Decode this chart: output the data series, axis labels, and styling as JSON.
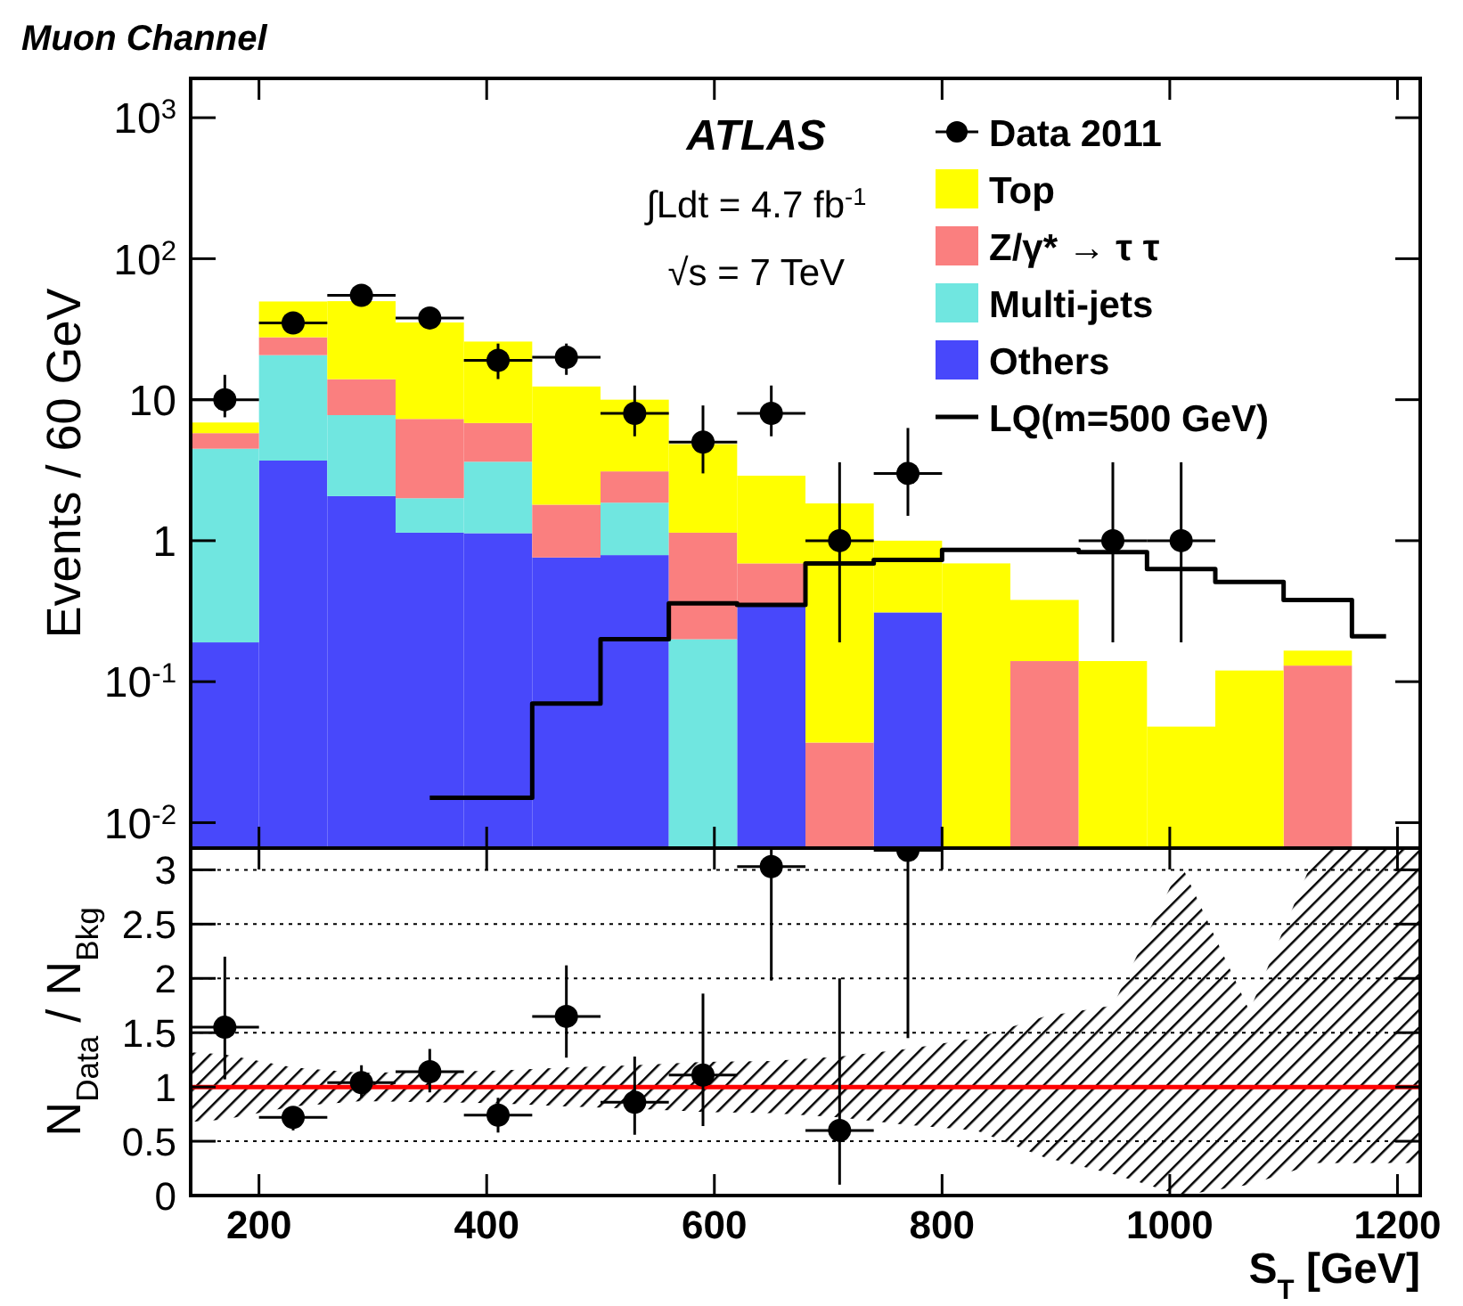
{
  "chart_data": [
    {
      "type": "bar",
      "title": "Muon Channel",
      "ylabel": "Events / 60 GeV",
      "stacked": true,
      "log": "y",
      "legend": "top right",
      "tick_labels": "y",
      "x": [
        170,
        230,
        290,
        350,
        410,
        470,
        530,
        590,
        650,
        710,
        770,
        830,
        890,
        950,
        1010,
        1070,
        1130,
        1190
      ],
      "xlim": [
        140,
        1220
      ],
      "xticks": [
        200,
        400,
        600,
        800,
        1000,
        1200
      ],
      "ylim": [
        0.0066,
        1900
      ],
      "yticks": [
        {
          "value": 0.01,
          "label": "10$^{-2}$"
        },
        {
          "value": 0.1,
          "label": "10$^{-1}$"
        },
        1,
        10,
        {
          "value": 100,
          "label": "10$^{2}$"
        },
        {
          "value": 1000,
          "label": "10$^{3}$"
        }
      ],
      "annotations": [
        "ATLAS",
        "∫Ldt = 4.7 fb$^{-1}$",
        "√s = 7 TeV"
      ],
      "series": [
        {
          "name": "Others",
          "color": "#4848fb",
          "values": [
            0.19,
            3.7,
            2.07,
            1.14,
            1.13,
            0.76,
            0.79,
            null,
            0.36,
            null,
            0.31,
            null,
            null,
            null,
            null,
            null,
            null,
            null
          ]
        },
        {
          "name": "Multi-jets",
          "color": "#70e6e0",
          "values": [
            4.3,
            17,
            5.7,
            0.86,
            2.5,
            null,
            1.07,
            0.2,
            null,
            null,
            null,
            null,
            null,
            null,
            null,
            null,
            null,
            null
          ]
        },
        {
          "name": "Z/γ* → τ τ",
          "color": "#fa7f7f",
          "values": [
            1.3,
            7,
            6.2,
            5.3,
            3.2,
            1.04,
            1.24,
            0.94,
            0.33,
            0.037,
            null,
            null,
            0.14,
            null,
            null,
            null,
            0.13,
            null
          ]
        },
        {
          "name": "Top",
          "color": "#ffff00",
          "values": [
            1.1,
            22,
            36,
            28,
            19,
            10.6,
            6.9,
            3.7,
            2.2,
            1.8,
            0.69,
            0.69,
            0.24,
            0.14,
            0.048,
            0.12,
            0.036,
            null
          ]
        },
        {
          "type": "scatter",
          "name": "Data 2011",
          "color": "#000000",
          "marker": "circle",
          "values": [
            10,
            35,
            55,
            38,
            19,
            20,
            8,
            5,
            8,
            1,
            3,
            null,
            null,
            1,
            1,
            null,
            null,
            null
          ],
          "errors": [
            [
              7.5,
              15
            ],
            [
              30,
              42
            ],
            [
              48,
              62
            ],
            [
              32,
              45
            ],
            [
              14,
              25
            ],
            [
              15,
              25
            ],
            [
              5.5,
              12.6
            ],
            [
              3,
              9.1
            ],
            [
              5.5,
              12.6
            ],
            [
              0.19,
              3.6
            ],
            [
              1.5,
              6.3
            ],
            null,
            null,
            [
              0.19,
              3.6
            ],
            [
              0.19,
              3.6
            ],
            null,
            null,
            null
          ],
          "xerrors": [
            30,
            30,
            30,
            30,
            30,
            30,
            30,
            30,
            30,
            30,
            30,
            null,
            null,
            30,
            30,
            null,
            null,
            null
          ]
        },
        {
          "type": "step",
          "name": "LQ(m=500 GeV)",
          "color": "#000000",
          "values": [
            null,
            null,
            null,
            0.015,
            0.015,
            0.07,
            0.2,
            0.36,
            0.35,
            0.69,
            0.73,
            0.86,
            0.86,
            0.83,
            0.63,
            0.51,
            0.38,
            0.21
          ]
        }
      ]
    },
    {
      "type": "scatter",
      "xlabel": "S$_{T}$ [GeV]",
      "ylabel": "N$_{Data}$ / N$_{Bkg}$",
      "grid": "y",
      "x": [
        170,
        230,
        290,
        350,
        410,
        470,
        530,
        590,
        650,
        710,
        770
      ],
      "xlim": [
        140,
        1220
      ],
      "xticks": [
        200,
        400,
        600,
        800,
        1000,
        1200
      ],
      "ylim": [
        0,
        3.2
      ],
      "yticks": [
        0,
        0.5,
        1,
        1.5,
        2,
        2.5,
        3
      ],
      "series": [
        {
          "type": "line",
          "color": "#ff0000",
          "x": [
            140,
            170,
            230,
            290,
            350,
            410,
            470,
            530,
            590,
            650,
            710,
            770,
            830,
            890,
            950,
            1010,
            1070,
            1130,
            1190,
            1220
          ],
          "values": [
            1,
            1,
            1,
            1,
            1,
            1,
            1,
            1,
            1,
            1,
            1,
            1,
            1,
            1,
            1,
            1,
            1,
            1,
            1,
            1
          ],
          "lower": [
            0.68,
            0.7,
            0.82,
            0.87,
            0.86,
            0.85,
            0.82,
            0.8,
            0.77,
            0.76,
            0.72,
            0.65,
            0.6,
            0.35,
            0.2,
            0,
            0.1,
            0.3,
            0.3,
            0.3
          ],
          "upper": [
            1.32,
            1.3,
            1.18,
            1.13,
            1.14,
            1.15,
            1.18,
            1.2,
            1.23,
            1.24,
            1.28,
            1.35,
            1.45,
            1.65,
            1.75,
            3.05,
            1.7,
            3.2,
            3.2,
            3.2
          ]
        },
        {
          "color": "#000000",
          "marker": "circle",
          "values": [
            1.55,
            0.72,
            1.04,
            1.14,
            0.74,
            1.65,
            0.86,
            1.11,
            3.03,
            0.6,
            3.18
          ],
          "errors": [
            [
              1.07,
              2.2
            ],
            [
              0.6,
              0.8
            ],
            [
              0.9,
              1.2
            ],
            [
              0.95,
              1.35
            ],
            [
              0.58,
              0.9
            ],
            [
              1.27,
              2.12
            ],
            [
              0.56,
              1.28
            ],
            [
              0.64,
              1.86
            ],
            [
              1.98,
              3.2
            ],
            [
              0.1,
              2.0
            ],
            [
              1.45,
              3.2
            ]
          ],
          "xerrors": [
            30,
            30,
            30,
            30,
            30,
            30,
            30,
            30,
            30,
            30,
            30
          ]
        }
      ]
    }
  ]
}
